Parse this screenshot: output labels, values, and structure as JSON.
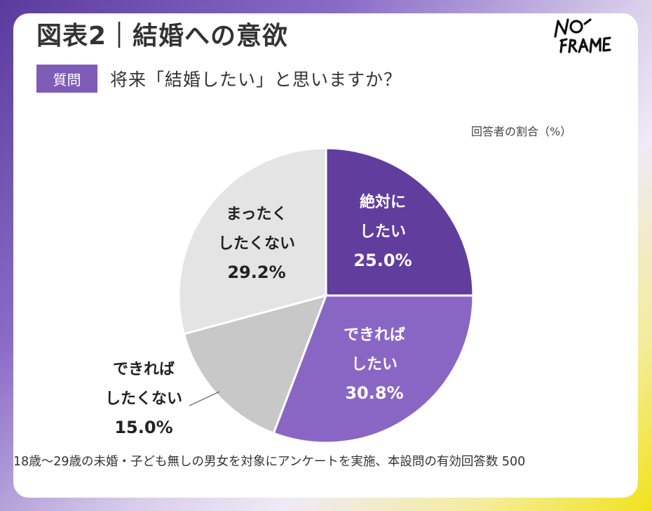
{
  "header": {
    "title": "図表2｜結婚への意欲",
    "logo_text": "NO-FRAME"
  },
  "question": {
    "badge": "質問",
    "text": "将来「結婚したい」と思いますか？"
  },
  "unit_note": "回答者の割合（%）",
  "footnote": "18歳〜29歳の未婚・子ども無しの男女を対象にアンケートを実施、本設問の有効回答数 500",
  "chart_data": {
    "type": "pie",
    "unit": "%",
    "start_angle": "12 o'clock",
    "direction": "clockwise",
    "slices": [
      {
        "label_lines": [
          "絶対に",
          "したい"
        ],
        "value": 25.0,
        "value_label": "25.0%",
        "color": "#613d9e",
        "text_color": "#ffffff"
      },
      {
        "label_lines": [
          "できれば",
          "したい"
        ],
        "value": 30.8,
        "value_label": "30.8%",
        "color": "#8a66c4",
        "text_color": "#ffffff"
      },
      {
        "label_lines": [
          "できれば",
          "したくない"
        ],
        "value": 15.0,
        "value_label": "15.0%",
        "color": "#c8c8c8",
        "text_color": "#222222"
      },
      {
        "label_lines": [
          "まったく",
          "したくない"
        ],
        "value": 29.2,
        "value_label": "29.2%",
        "color": "#e4e4e4",
        "text_color": "#222222"
      }
    ]
  }
}
